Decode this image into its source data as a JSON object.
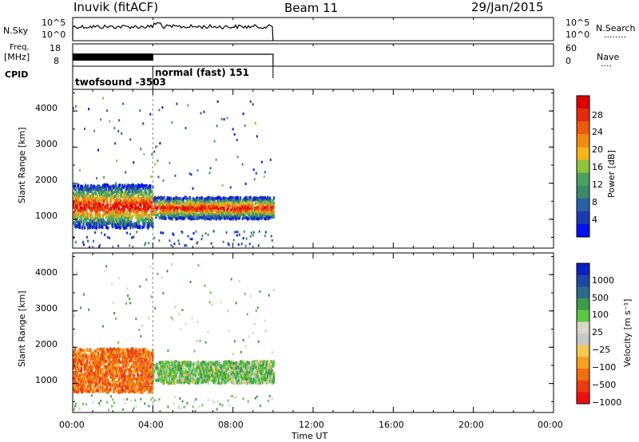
{
  "header": {
    "site": "Inuvik (fitACF)",
    "beam": "Beam 11",
    "date": "29/Jan/2015"
  },
  "left_labels": {
    "nsky": "N.Sky",
    "freq_line1": "Freq.",
    "freq_line2": "[MHz]",
    "cpid": "CPID"
  },
  "right_labels": {
    "nsearch": "N.Search",
    "nsearch_dots": "........",
    "nave": "Nave",
    "nave_dots": "...."
  },
  "noise_panel": {
    "left_ticks": [
      "10^5",
      "10^0"
    ],
    "right_ticks": [
      "10^5",
      "10^0"
    ]
  },
  "freq_panel": {
    "left_ticks": [
      "18",
      "8"
    ],
    "right_ticks": [
      "60",
      "0"
    ]
  },
  "cpid_panel": {
    "modes": [
      {
        "label": "twofsound -3503",
        "start": 0,
        "end": 4
      },
      {
        "label": "normal (fast) 151",
        "start": 4,
        "end": 10
      }
    ]
  },
  "colors": {
    "power_scale": [
      "#0010ee",
      "#1c3ab0",
      "#2860a8",
      "#3a8a6a",
      "#4aa060",
      "#8cc43c",
      "#f4b41a",
      "#f08a10",
      "#ee5a0c",
      "#e42a0a",
      "#dd0000"
    ],
    "velocity_scale": [
      "#ee1010",
      "#ee3a10",
      "#f07010",
      "#f4a020",
      "#f8c850",
      "#c8c8c8",
      "#d8d8c8",
      "#5cc840",
      "#3e9a4c",
      "#2c6a8a",
      "#1e46a4",
      "#0a20c0"
    ]
  },
  "chart_data": [
    {
      "type": "heatmap",
      "title": "",
      "xlabel": "Time UT",
      "ylabel": "Slant Range [km]",
      "x_ticks": [
        "00:00",
        "04:00",
        "08:00",
        "12:00",
        "16:00",
        "20:00",
        "00:00"
      ],
      "y_ticks": [
        "1000",
        "2000",
        "3000",
        "4000"
      ],
      "xlim": [
        0,
        24
      ],
      "ylim": [
        200,
        4600
      ],
      "colorbar": {
        "label": "Power [dB]",
        "ticks": [
          "4",
          "8",
          "12",
          "16",
          "20",
          "24",
          "28"
        ],
        "range": [
          0,
          30
        ]
      },
      "data_extent_hours": [
        0,
        10
      ]
    },
    {
      "type": "heatmap",
      "title": "",
      "xlabel": "Time UT",
      "ylabel": "Slant Range [km]",
      "x_ticks": [
        "00:00",
        "04:00",
        "08:00",
        "12:00",
        "16:00",
        "20:00",
        "00:00"
      ],
      "y_ticks": [
        "1000",
        "2000",
        "3000",
        "4000"
      ],
      "xlim": [
        0,
        24
      ],
      "ylim": [
        200,
        4600
      ],
      "colorbar": {
        "label": "Velocity [m s⁻¹]",
        "ticks": [
          "1000",
          "500",
          "100",
          "25",
          "−25",
          "−100",
          "−500",
          "−1000"
        ],
        "range": [
          -1000,
          1000
        ]
      },
      "data_extent_hours": [
        0,
        10
      ]
    }
  ],
  "axes": {
    "x_title": "Time UT"
  }
}
